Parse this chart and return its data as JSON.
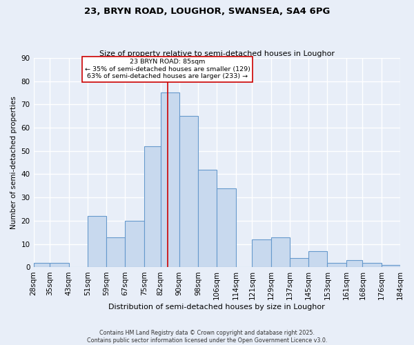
{
  "title": "23, BRYN ROAD, LOUGHOR, SWANSEA, SA4 6PG",
  "subtitle": "Size of property relative to semi-detached houses in Loughor",
  "xlabel": "Distribution of semi-detached houses by size in Loughor",
  "ylabel": "Number of semi-detached properties",
  "footer_line1": "Contains HM Land Registry data © Crown copyright and database right 2025.",
  "footer_line2": "Contains public sector information licensed under the Open Government Licence v3.0.",
  "annotation_title": "23 BRYN ROAD: 85sqm",
  "annotation_line1": "← 35% of semi-detached houses are smaller (129)",
  "annotation_line2": "63% of semi-detached houses are larger (233) →",
  "property_value": 85,
  "bin_edges": [
    28,
    35,
    43,
    51,
    59,
    67,
    75,
    82,
    90,
    98,
    106,
    114,
    121,
    129,
    137,
    145,
    153,
    161,
    168,
    176,
    184
  ],
  "bin_counts": [
    2,
    2,
    0,
    22,
    13,
    20,
    52,
    75,
    65,
    42,
    34,
    0,
    12,
    13,
    4,
    7,
    2,
    3,
    2,
    1
  ],
  "bar_color": "#c8d9ee",
  "bar_edge_color": "#6699cc",
  "vline_color": "#cc0000",
  "background_color": "#e8eef8",
  "grid_color": "#ffffff",
  "ylim": [
    0,
    90
  ],
  "yticks": [
    0,
    10,
    20,
    30,
    40,
    50,
    60,
    70,
    80,
    90
  ],
  "tick_labels": [
    "28sqm",
    "35sqm",
    "43sqm",
    "51sqm",
    "59sqm",
    "67sqm",
    "75sqm",
    "82sqm",
    "90sqm",
    "98sqm",
    "106sqm",
    "114sqm",
    "121sqm",
    "129sqm",
    "137sqm",
    "145sqm",
    "153sqm",
    "161sqm",
    "168sqm",
    "176sqm",
    "184sqm"
  ]
}
